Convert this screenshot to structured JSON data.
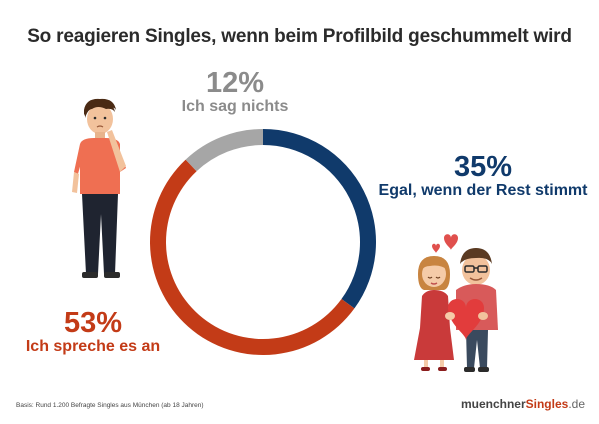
{
  "title": "So reagieren Singles, wenn beim Profilbild geschummelt wird",
  "chart_data": {
    "type": "pie",
    "title": "So reagieren Singles, wenn beim Profilbild geschummelt wird",
    "categories": [
      "Egal, wenn der Rest stimmt",
      "Ich spreche es an",
      "Ich sag nichts"
    ],
    "values": [
      35,
      53,
      12
    ],
    "value_labels": [
      "35%",
      "53%",
      "12%"
    ],
    "colors": [
      "#103a6b",
      "#c33b17",
      "#a6a6a6"
    ]
  },
  "callouts": {
    "gray": {
      "pct": "12%",
      "label": "Ich sag nichts"
    },
    "blue": {
      "pct": "35%",
      "label": "Egal, wenn der Rest stimmt"
    },
    "red": {
      "pct": "53%",
      "label": "Ich spreche es an"
    }
  },
  "footnote": "Basis: Rund 1.200 Befragte Singles aus München (ab 18 Jahren)",
  "brand": {
    "part1": "muenchner",
    "part2": "Singles",
    "part3": ".de"
  }
}
